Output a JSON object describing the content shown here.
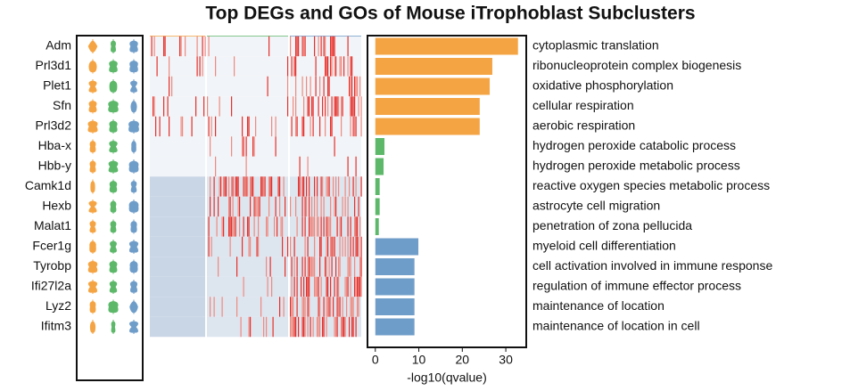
{
  "chart_data": {
    "type": "bar",
    "orientation": "horizontal",
    "title": "Top DEGs and GOs of Mouse iTrophoblast Subclusters",
    "x_label": "-log10(qvalue)",
    "categories": [
      "cytoplasmic translation",
      "ribonucleoprotein complex biogenesis",
      "oxidative phosphorylation",
      "cellular respiration",
      "aerobic respiration",
      "hydrogen peroxide catabolic process",
      "hydrogen peroxide metabolic process",
      "reactive oxygen species metabolic process",
      "astrocyte cell migration",
      "penetration of zona pellucida",
      "myeloid cell differentiation",
      "cell activation involved in immune response",
      "regulation of immune effector process",
      "maintenance of location",
      "maintenance of location in cell"
    ],
    "values": [
      32.8,
      26.9,
      26.3,
      24,
      24,
      2.1,
      1.9,
      1.0,
      1.0,
      0.8,
      9.9,
      9.0,
      9.0,
      9.0,
      9.0
    ],
    "colors": [
      "#f5a443",
      "#f5a443",
      "#f5a443",
      "#f5a443",
      "#f5a443",
      "#5db86a",
      "#5db86a",
      "#5db86a",
      "#5db86a",
      "#5db86a",
      "#6f9dc9",
      "#6f9dc9",
      "#6f9dc9",
      "#6f9dc9",
      "#6f9dc9"
    ],
    "xlim": [
      -1.8,
      34.7
    ],
    "xticks": [
      0,
      10,
      20,
      30
    ],
    "genes": [
      "Adm",
      "Prl3d1",
      "Plet1",
      "Sfn",
      "Prl3d2",
      "Hba-x",
      "Hbb-y",
      "Camk1d",
      "Hexb",
      "Malat1",
      "Fcer1g",
      "Tyrobp",
      "Ifi27l2a",
      "Lyz2",
      "Ifitm3"
    ],
    "cluster_colors": [
      "#f5a443",
      "#5db86a",
      "#6f9dc9"
    ]
  }
}
